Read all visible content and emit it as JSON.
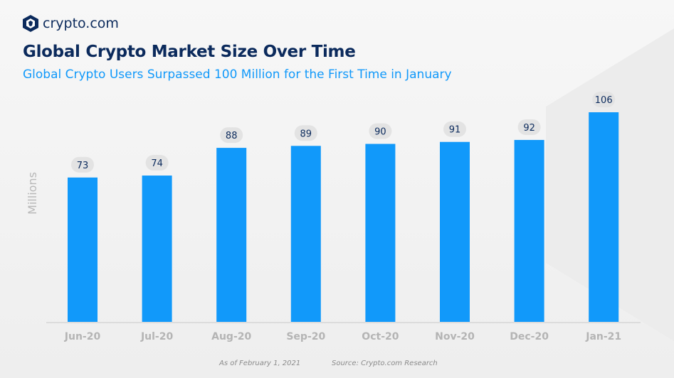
{
  "brand": {
    "name": "crypto.com",
    "logo_icon": "crypto-com-lion-shield"
  },
  "colors": {
    "bar": "#1199fa",
    "title": "#0b2a5c",
    "subtitle": "#1199fa",
    "label_pill": "#e3e3e3"
  },
  "chart_data": {
    "type": "bar",
    "title": "Global Crypto Market Size Over Time",
    "subtitle": "Global Crypto Users Surpassed 100 Million for the First Time in January",
    "xlabel": "",
    "ylabel": "Millions",
    "categories": [
      "Jun-20",
      "Jul-20",
      "Aug-20",
      "Sep-20",
      "Oct-20",
      "Nov-20",
      "Dec-20",
      "Jan-21"
    ],
    "values": [
      73,
      74,
      88,
      89,
      90,
      91,
      92,
      106
    ],
    "ylim": [
      0,
      110
    ],
    "grid": false,
    "data_labels": true
  },
  "footer": {
    "as_of": "As of February 1, 2021",
    "source": "Source: Crypto.com Research"
  }
}
